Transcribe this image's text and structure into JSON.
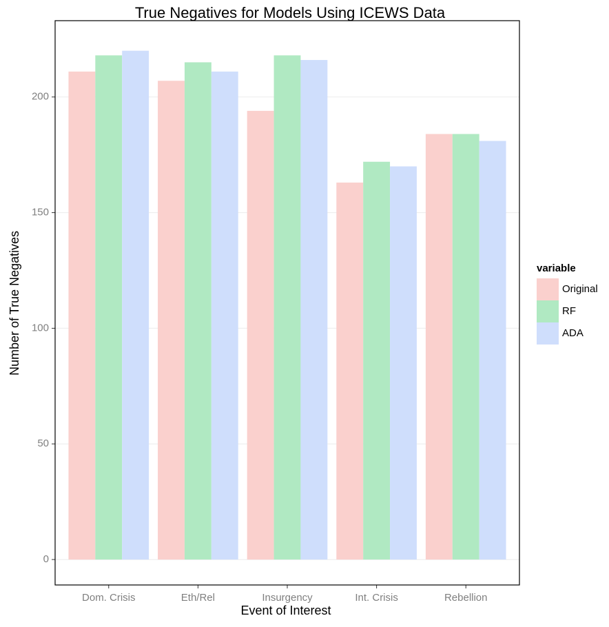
{
  "chart_data": {
    "type": "bar",
    "title": "True Negatives for Models Using ICEWS Data",
    "x_label": "Event of Interest",
    "y_label": "Number of True Negatives",
    "categories": [
      "Dom. Crisis",
      "Eth/Rel",
      "Insurgency",
      "Int. Crisis",
      "Rebellion"
    ],
    "series": [
      {
        "name": "Original",
        "color": "#fad0cd",
        "values": [
          211,
          207,
          194,
          163,
          184
        ]
      },
      {
        "name": "RF",
        "color": "#b0e9c2",
        "values": [
          218,
          215,
          218,
          172,
          184
        ]
      },
      {
        "name": "ADA",
        "color": "#cfdefc",
        "values": [
          220,
          211,
          216,
          170,
          181
        ]
      }
    ],
    "legend_title": "variable",
    "ylim": [
      -11,
      233
    ],
    "yticks": [
      0,
      50,
      100,
      150,
      200
    ],
    "grid": true,
    "legend_position": "right"
  }
}
